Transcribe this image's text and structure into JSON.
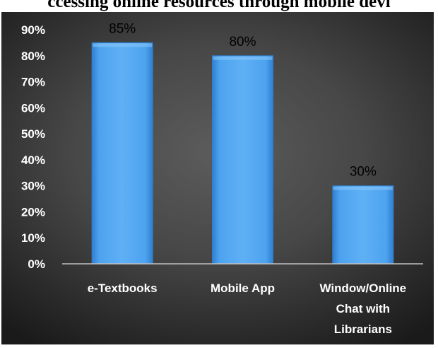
{
  "title": "ccessing online resources through mobile devi",
  "chart_data": {
    "type": "bar",
    "categories": [
      "e-Textbooks",
      "Mobile App",
      "Window/Online Chat with Librarians"
    ],
    "category_lines": [
      [
        "e-Textbooks"
      ],
      [
        "Mobile App"
      ],
      [
        "Window/Online",
        "Chat with",
        "Librarians"
      ]
    ],
    "values": [
      85,
      80,
      30
    ],
    "data_labels": [
      "85%",
      "80%",
      "30%"
    ],
    "y_ticks": [
      "0%",
      "10%",
      "20%",
      "30%",
      "40%",
      "50%",
      "60%",
      "70%",
      "80%",
      "90%"
    ],
    "ylim": [
      0,
      90
    ],
    "grid": false,
    "legend": "none",
    "colors": {
      "bar": "#4da3ef",
      "bar_edge": "#2f7fd0",
      "background": "#3d3d3d",
      "axis": "#bfbfbf"
    }
  }
}
